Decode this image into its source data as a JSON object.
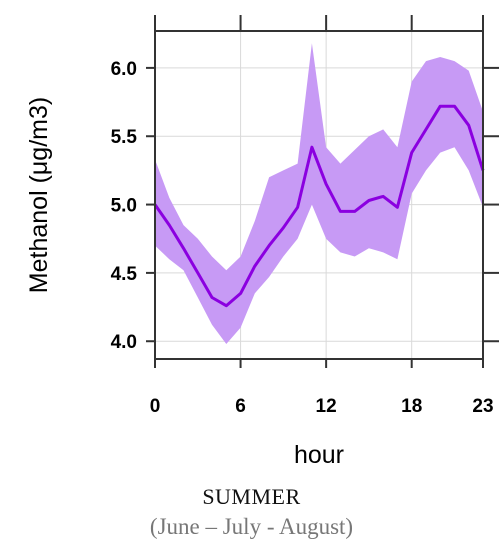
{
  "chart_data": {
    "type": "line",
    "title": "",
    "xlabel": "hour",
    "ylabel": "Methanol (μg/m3)",
    "xlim": [
      0,
      23
    ],
    "ylim": [
      3.87,
      6.27
    ],
    "x_ticks": [
      "0",
      "6",
      "12",
      "18",
      "23"
    ],
    "y_ticks": [
      "4.0",
      "4.5",
      "5.0",
      "5.5",
      "6.0"
    ],
    "grid": true,
    "colors": {
      "line": "#8b00e0",
      "band": "#c79af5",
      "grid": "#d9d9d9",
      "axis": "#333333"
    },
    "series": [
      {
        "x": [
          0,
          1,
          2,
          3,
          4,
          5,
          6,
          7,
          8,
          9,
          10,
          11,
          12,
          13,
          14,
          15,
          16,
          17,
          18,
          19,
          20,
          21,
          22,
          23
        ],
        "mean": [
          5.0,
          4.85,
          4.68,
          4.5,
          4.32,
          4.26,
          4.35,
          4.55,
          4.7,
          4.83,
          4.98,
          5.42,
          5.15,
          4.95,
          4.95,
          5.03,
          5.06,
          4.98,
          5.38,
          5.55,
          5.72,
          5.72,
          5.58,
          5.25
        ],
        "upper": [
          5.33,
          5.05,
          4.85,
          4.75,
          4.62,
          4.52,
          4.62,
          4.88,
          5.2,
          5.25,
          5.3,
          6.18,
          5.42,
          5.3,
          5.4,
          5.5,
          5.55,
          5.42,
          5.9,
          6.05,
          6.08,
          6.05,
          5.98,
          5.68
        ],
        "lower": [
          4.7,
          4.6,
          4.52,
          4.32,
          4.12,
          3.98,
          4.1,
          4.35,
          4.47,
          4.62,
          4.75,
          5.0,
          4.75,
          4.65,
          4.62,
          4.68,
          4.65,
          4.6,
          5.08,
          5.25,
          5.38,
          5.42,
          5.25,
          4.98
        ]
      }
    ]
  },
  "caption": {
    "season": "SUMMER",
    "months": "(June – July - August)"
  }
}
